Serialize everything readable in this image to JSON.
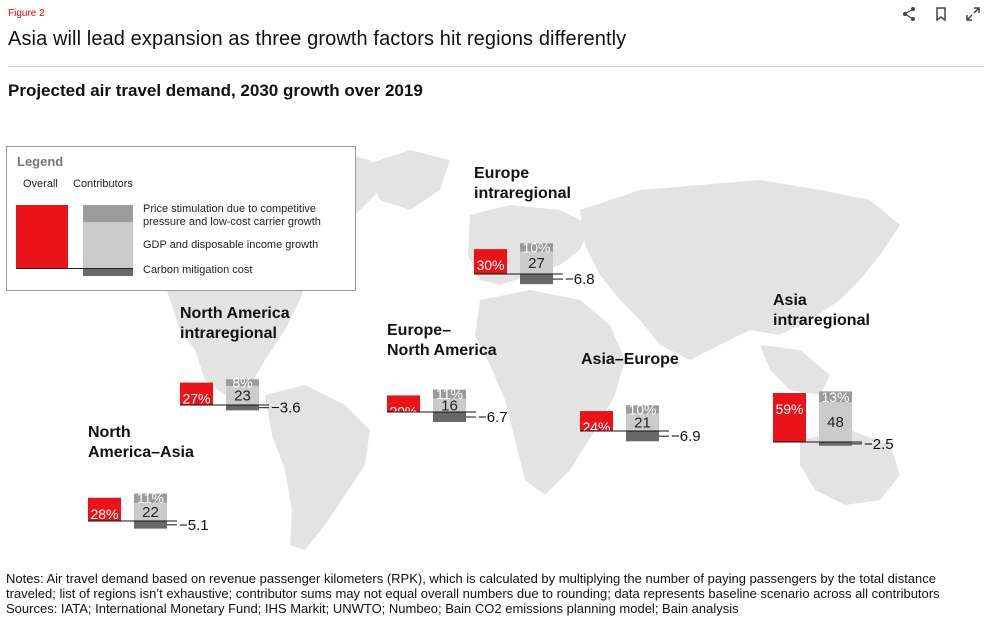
{
  "figure_label": "Figure 2",
  "header": {
    "title": "Asia will lead expansion as three growth factors hit regions differently",
    "icons": [
      "share-icon",
      "bookmark-icon",
      "expand-icon"
    ]
  },
  "legend": {
    "title": "Legend",
    "overall_label": "Overall",
    "contributors_label": "Contributors",
    "items": [
      "Price stimulation due to competitive pressure and low-cost carrier growth",
      "GDP and disposable income growth",
      "Carbon mitigation cost"
    ],
    "item_lines": [
      [
        "Price stimulation due to competitive",
        "pressure and low-cost carrier growth"
      ],
      [
        "GDP and disposable income growth"
      ],
      [
        "Carbon mitigation cost"
      ]
    ]
  },
  "colors": {
    "overall": "#e8141a",
    "price": "#9b9b9b",
    "gdp": "#cbcbcb",
    "carbon": "#686868",
    "map": "#e3e3e3"
  },
  "footnotes": {
    "notes": "Notes: Air travel demand based on revenue passenger kilometers (RPK), which is calculated by multiplying the number of paying passengers by the total distance traveled; list of regions isn’t exhaustive; contributor sums may not equal overall numbers due to rounding; data represents baseline scenario across all contributors",
    "sources": "Sources: IATA; International Monetary Fund; IHS Markit; UNWTO; Numbeo; Bain CO2 emissions planning model; Bain analysis"
  },
  "chart_data": {
    "type": "bar",
    "title": "Projected air travel demand, 2030 growth over 2019",
    "unit": "%",
    "series_names": [
      "Overall",
      "Price stimulation due to competitive pressure and low-cost carrier growth",
      "GDP and disposable income growth",
      "Carbon mitigation cost"
    ],
    "regions": [
      {
        "name": "Europe intraregional",
        "name_lines": [
          "Europe",
          "intraregional"
        ],
        "overall": 30,
        "price": 10,
        "gdp": 27,
        "carbon": -6.8,
        "overall_label": "30%",
        "price_label": "10%",
        "gdp_label": "27",
        "carbon_label": "−6.8"
      },
      {
        "name": "North America intraregional",
        "name_lines": [
          "North America",
          "intraregional"
        ],
        "overall": 27,
        "price": 8,
        "gdp": 23,
        "carbon": -3.6,
        "overall_label": "27%",
        "price_label": "8%",
        "gdp_label": "23",
        "carbon_label": "−3.6"
      },
      {
        "name": "Europe–North America",
        "name_lines": [
          "Europe–",
          "North America"
        ],
        "overall": 20,
        "price": 11,
        "gdp": 16,
        "carbon": -6.7,
        "overall_label": "20%",
        "price_label": "11%",
        "gdp_label": "16",
        "carbon_label": "−6.7"
      },
      {
        "name": "Asia–Europe",
        "name_lines": [
          "Asia–Europe"
        ],
        "overall": 24,
        "price": 10,
        "gdp": 21,
        "carbon": -6.9,
        "overall_label": "24%",
        "price_label": "10%",
        "gdp_label": "21",
        "carbon_label": "−6.9"
      },
      {
        "name": "Asia intraregional",
        "name_lines": [
          "Asia",
          "intraregional"
        ],
        "overall": 59,
        "price": 13,
        "gdp": 48,
        "carbon": -2.5,
        "overall_label": "59%",
        "price_label": "13%",
        "gdp_label": "48",
        "carbon_label": "−2.5"
      },
      {
        "name": "North America–Asia",
        "name_lines": [
          "North",
          "America–Asia"
        ],
        "overall": 28,
        "price": 11,
        "gdp": 22,
        "carbon": -5.1,
        "overall_label": "28%",
        "price_label": "11%",
        "gdp_label": "22",
        "carbon_label": "−5.1"
      }
    ]
  }
}
